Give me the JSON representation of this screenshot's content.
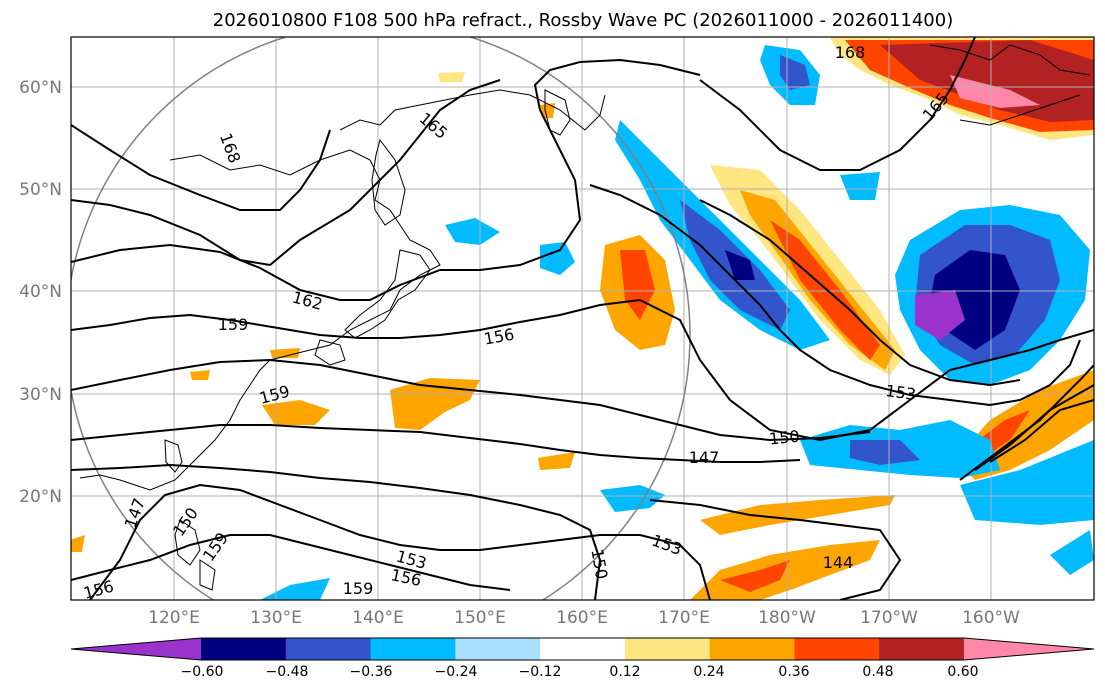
{
  "title": "2026010800 F108 500 hPa refract., Rossby Wave PC (2026011000 - 2026011400)",
  "lat_ticks": [
    "60°N",
    "50°N",
    "40°N",
    "30°N",
    "20°N"
  ],
  "lon_ticks": [
    "120°E",
    "130°E",
    "140°E",
    "150°E",
    "160°E",
    "170°E",
    "180°W",
    "170°W",
    "160°W"
  ],
  "colorbar": {
    "ticks": [
      "−0.60",
      "−0.48",
      "−0.36",
      "−0.24",
      "−0.12",
      "0.12",
      "0.24",
      "0.36",
      "0.48",
      "0.60"
    ],
    "colors": [
      "#9933cc",
      "#000080",
      "#3355cc",
      "#00bbff",
      "#aadfff",
      "#ffffff",
      "#ffe680",
      "#ffa500",
      "#ff4500",
      "#b22222",
      "#ff88aa"
    ]
  },
  "contour_labels": [
    "168",
    "165",
    "168",
    "162",
    "159",
    "156",
    "159",
    "153",
    "150",
    "147",
    "147",
    "150",
    "159",
    "153",
    "156",
    "159",
    "156",
    "150",
    "153",
    "144",
    "165"
  ]
}
